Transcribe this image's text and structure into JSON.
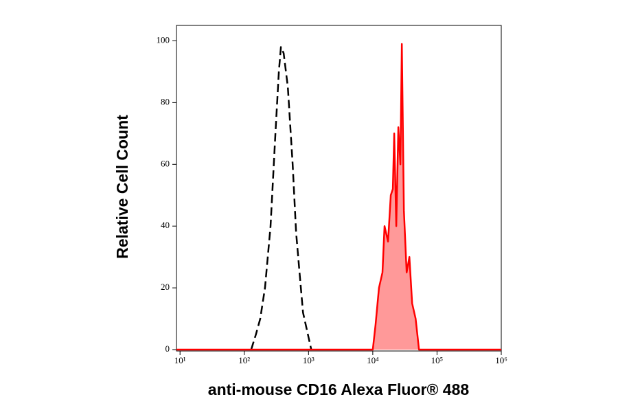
{
  "chart_data": {
    "type": "line",
    "xscale": "log",
    "xlabel": "anti-mouse CD16 Alexa Fluor® 488",
    "ylabel": "Relative Cell Count",
    "xlim": [
      8.8,
      1000000
    ],
    "ylim": [
      0,
      105
    ],
    "xticks": [
      {
        "value": 10,
        "label": "10¹"
      },
      {
        "value": 100,
        "label": "10²"
      },
      {
        "value": 1000,
        "label": "10³"
      },
      {
        "value": 10000,
        "label": "10⁴"
      },
      {
        "value": 100000,
        "label": "10⁵"
      },
      {
        "value": 1000000,
        "label": "10⁶"
      }
    ],
    "yticks": [
      0,
      20,
      40,
      60,
      80,
      100
    ],
    "series": [
      {
        "color": "#000000",
        "dashed": true,
        "filled": false,
        "x": [
          128,
          152,
          177,
          210,
          256,
          305,
          345,
          372,
          410,
          476,
          566,
          640,
          725,
          820,
          975,
          1104
        ],
        "values": [
          0,
          5,
          10,
          20,
          40,
          70,
          90,
          98,
          96,
          85,
          60,
          38,
          25,
          12,
          5,
          0
        ]
      },
      {
        "color": "#ff0000",
        "fill": "#ff9999",
        "dashed": false,
        "filled": true,
        "x": [
          8.8,
          10000,
          11040,
          12500,
          14160,
          15240,
          17260,
          19060,
          20520,
          21540,
          23230,
          25000,
          26920,
          28310,
          30480,
          33650,
          37170,
          41020,
          46450,
          52480,
          1000000
        ],
        "values": [
          0,
          0,
          8,
          20,
          25,
          40,
          35,
          50,
          52,
          70,
          40,
          72,
          60,
          99,
          45,
          25,
          30,
          15,
          10,
          0,
          0
        ]
      }
    ]
  }
}
